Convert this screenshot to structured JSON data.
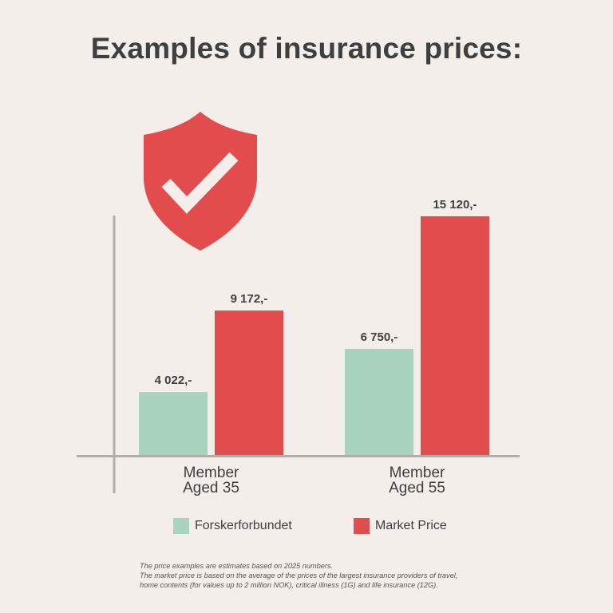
{
  "title": "Examples of insurance prices:",
  "colors": {
    "background": "#f3eeea",
    "forskerforbundet": "#a8d3bf",
    "market_price": "#e34c4c",
    "axis": "#b0adaa",
    "text": "#3f3f3f"
  },
  "icon": "shield-check-icon",
  "chart_data": {
    "type": "bar",
    "title": "Examples of insurance prices:",
    "categories": [
      [
        "Member",
        "Aged 35"
      ],
      [
        "Member",
        "Aged 55"
      ]
    ],
    "series": [
      {
        "name": "Forskerforbundet",
        "color": "#a8d3bf",
        "values": [
          4022,
          6750
        ],
        "labels": [
          "4 022,-",
          "6 750,-"
        ]
      },
      {
        "name": "Market Price",
        "color": "#e34c4c",
        "values": [
          9172,
          15120
        ],
        "labels": [
          "9 172,-",
          "15 120,-"
        ]
      }
    ],
    "ylim": [
      0,
      16000
    ],
    "grid": false,
    "legend_position": "bottom"
  },
  "legend": {
    "items": [
      {
        "label": "Forskerforbundet"
      },
      {
        "label": "Market Price"
      }
    ]
  },
  "footnote": [
    "The price examples are estimates based on 2025 numbers.",
    "The market price is based on the average of the prices of the largest insurance providers of travel,",
    "home contents (for values up to 2 million NOK), critical illness (1G) and life insurance (12G)."
  ]
}
